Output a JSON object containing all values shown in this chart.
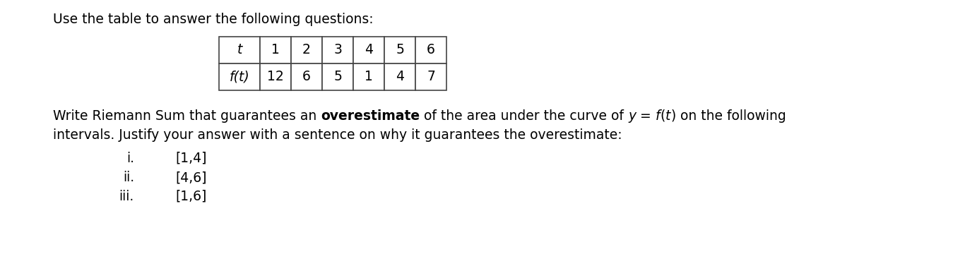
{
  "title_line": "Use the table to answer the following questions:",
  "table_headers": [
    "t",
    "1",
    "2",
    "3",
    "4",
    "5",
    "6"
  ],
  "table_row2": [
    "f(t)",
    "12",
    "6",
    "5",
    "1",
    "4",
    "7"
  ],
  "instruction_line2": "intervals. Justify your answer with a sentence on why it guarantees the overestimate:",
  "items": [
    {
      "label": "i.",
      "value": "[1,4]"
    },
    {
      "label": "ii.",
      "value": "[4,6]"
    },
    {
      "label": "iii.",
      "value": "[1,6]"
    }
  ],
  "background_color": "#ffffff",
  "text_color": "#000000",
  "font_size": 13.5
}
